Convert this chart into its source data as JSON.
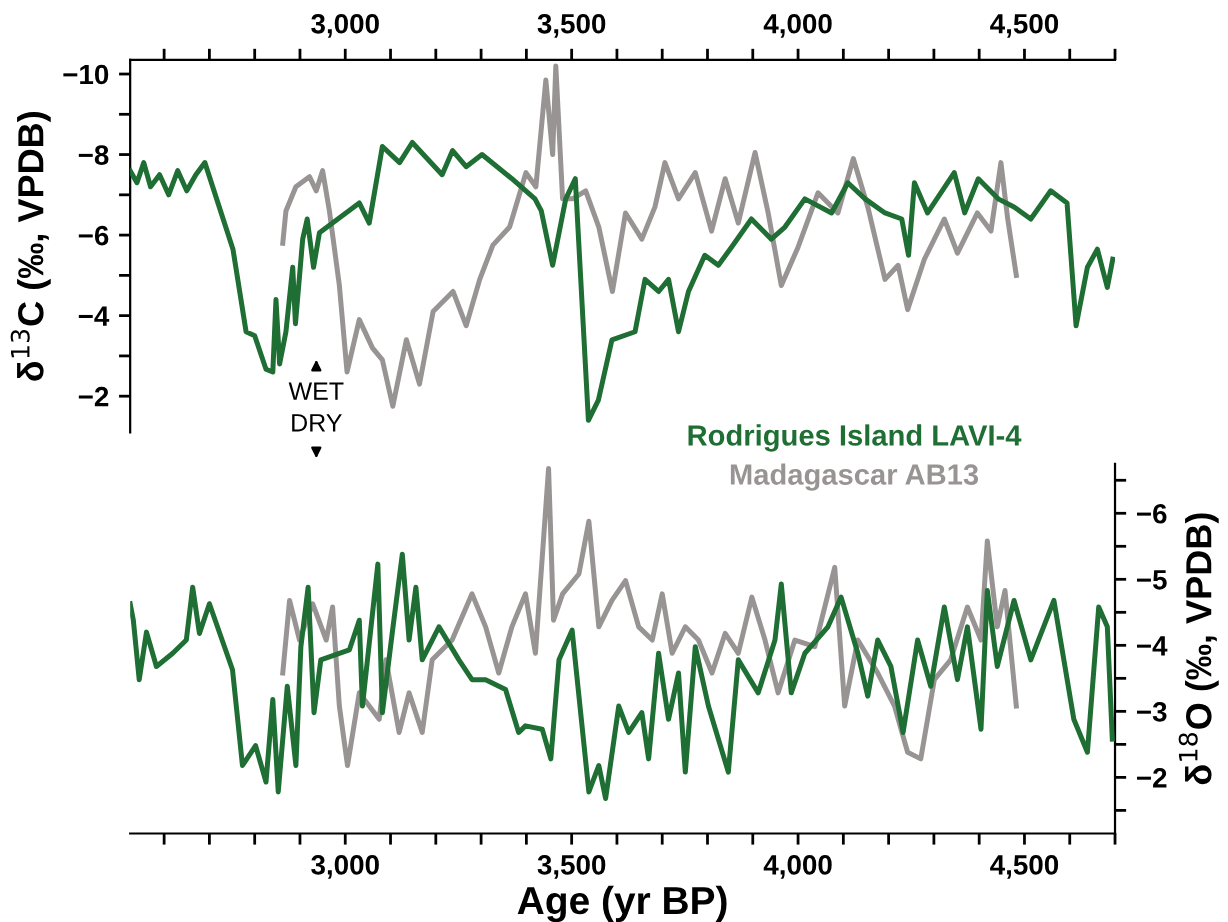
{
  "chart_data": [
    {
      "type": "line",
      "ylabel": "δ$^{13}$C (‰, VPDB)",
      "tick_labels": "y",
      "xlim": [
        2525,
        4700
      ],
      "x2lim": [
        2525,
        4700
      ],
      "x2ticks": [
        {
          "value": 2600,
          "label": null
        },
        {
          "value": 2700,
          "label": null
        },
        {
          "value": 2800,
          "label": null
        },
        {
          "value": 2900,
          "label": null
        },
        {
          "value": 3000,
          "label": "3,000"
        },
        {
          "value": 3100,
          "label": null
        },
        {
          "value": 3200,
          "label": null
        },
        {
          "value": 3300,
          "label": null
        },
        {
          "value": 3400,
          "label": null
        },
        {
          "value": 3500,
          "label": "3,500"
        },
        {
          "value": 3600,
          "label": null
        },
        {
          "value": 3700,
          "label": null
        },
        {
          "value": 3800,
          "label": null
        },
        {
          "value": 3900,
          "label": null
        },
        {
          "value": 4000,
          "label": "4,000"
        },
        {
          "value": 4100,
          "label": null
        },
        {
          "value": 4200,
          "label": null
        },
        {
          "value": 4300,
          "label": null
        },
        {
          "value": 4400,
          "label": null
        },
        {
          "value": 4500,
          "label": "4,500"
        },
        {
          "value": 4600,
          "label": null
        },
        {
          "value": 4700,
          "label": null
        }
      ],
      "ylim": [
        -1.1,
        -10.35
      ],
      "yticks": [
        {
          "value": -10,
          "label": "−10"
        },
        {
          "value": -9,
          "label": null
        },
        {
          "value": -8,
          "label": "−8"
        },
        {
          "value": -7,
          "label": null
        },
        {
          "value": -6,
          "label": "−6"
        },
        {
          "value": -5,
          "label": null
        },
        {
          "value": -4,
          "label": "−4"
        },
        {
          "value": -3,
          "label": null
        },
        {
          "value": -2,
          "label": "−2"
        }
      ],
      "line_style": "solid",
      "annotations": [
        "WET"
      ],
      "series": [
        {
          "name": "Rodrigues Island LAVI-4",
          "color": "#1f6e34",
          "x": [
            2525,
            2540,
            2555,
            2570,
            2590,
            2610,
            2630,
            2650,
            2670,
            2690,
            2752,
            2781,
            2800,
            2825,
            2840,
            2847,
            2855,
            2869,
            2884,
            2890,
            2906,
            2916,
            2930,
            2943,
            3031,
            3053,
            3082,
            3120,
            3148,
            3214,
            3237,
            3267,
            3302,
            3368,
            3419,
            3433,
            3458,
            3487,
            3508,
            3537,
            3559,
            3589,
            3640,
            3662,
            3692,
            3714,
            3736,
            3758,
            3794,
            3824,
            3853,
            3897,
            3941,
            3971,
            4015,
            4074,
            4110,
            4148,
            4192,
            4229,
            4244,
            4257,
            4286,
            4345,
            4368,
            4398,
            4442,
            4477,
            4514,
            4558,
            4594,
            4614,
            4639,
            4661,
            4683,
            4695
          ],
          "values": [
            -7.6,
            -7.3,
            -7.8,
            -7.2,
            -7.5,
            -7.0,
            -7.6,
            -7.1,
            -7.5,
            -7.8,
            -5.65,
            -3.6,
            -3.5,
            -2.67,
            -2.6,
            -4.4,
            -2.8,
            -3.6,
            -5.2,
            -3.8,
            -5.9,
            -6.4,
            -5.2,
            -6.06,
            -6.8,
            -6.3,
            -8.2,
            -7.8,
            -8.3,
            -7.5,
            -8.1,
            -7.7,
            -8.0,
            -7.4,
            -6.9,
            -6.6,
            -5.25,
            -6.9,
            -7.4,
            -1.4,
            -1.9,
            -3.4,
            -3.6,
            -4.9,
            -4.6,
            -4.9,
            -3.6,
            -4.6,
            -5.5,
            -5.25,
            -5.7,
            -6.4,
            -5.9,
            -6.2,
            -6.9,
            -6.55,
            -7.3,
            -6.9,
            -6.55,
            -6.4,
            -5.5,
            -7.3,
            -6.55,
            -7.55,
            -6.55,
            -7.4,
            -6.9,
            -6.7,
            -6.4,
            -7.1,
            -6.8,
            -3.75,
            -5.2,
            -5.65,
            -4.7,
            -5.4
          ]
        },
        {
          "name": "Madagascar AB13",
          "color": "#999494",
          "x": [
            2862,
            2869,
            2891,
            2921,
            2936,
            2950,
            2965,
            2987,
            3004,
            3031,
            3060,
            3082,
            3105,
            3135,
            3164,
            3194,
            3238,
            3267,
            3297,
            3326,
            3363,
            3399,
            3421,
            3443,
            3458,
            3465,
            3480,
            3502,
            3531,
            3560,
            3590,
            3619,
            3655,
            3684,
            3706,
            3736,
            3773,
            3809,
            3839,
            3868,
            3905,
            3934,
            3963,
            4000,
            4044,
            4088,
            4122,
            4154,
            4192,
            4221,
            4242,
            4279,
            4323,
            4352,
            4396,
            4426,
            4448,
            4463,
            4482
          ],
          "values": [
            -5.8,
            -6.6,
            -7.2,
            -7.45,
            -7.1,
            -7.6,
            -6.6,
            -4.75,
            -2.6,
            -3.9,
            -3.2,
            -2.9,
            -1.75,
            -3.4,
            -2.3,
            -4.1,
            -4.6,
            -3.75,
            -4.9,
            -5.75,
            -6.2,
            -7.55,
            -7.2,
            -9.85,
            -8.0,
            -10.2,
            -6.9,
            -6.9,
            -7.1,
            -6.2,
            -4.6,
            -6.55,
            -5.9,
            -6.7,
            -7.8,
            -6.9,
            -7.55,
            -6.1,
            -7.4,
            -6.3,
            -8.05,
            -6.55,
            -4.75,
            -5.7,
            -7.05,
            -6.55,
            -7.9,
            -6.7,
            -4.9,
            -5.25,
            -4.15,
            -5.4,
            -6.4,
            -5.55,
            -6.55,
            -6.1,
            -7.8,
            -6.4,
            -5.0
          ]
        }
      ]
    },
    {
      "type": "line",
      "xlabel": "Age (yr BP)",
      "y2label": "δ$^{18}$O (‰, VPDB)",
      "xlim": [
        2525,
        4700
      ],
      "xticks": [
        {
          "value": 2600,
          "label": null
        },
        {
          "value": 2700,
          "label": null
        },
        {
          "value": 2800,
          "label": null
        },
        {
          "value": 2900,
          "label": null
        },
        {
          "value": 3000,
          "label": "3,000"
        },
        {
          "value": 3100,
          "label": null
        },
        {
          "value": 3200,
          "label": null
        },
        {
          "value": 3300,
          "label": null
        },
        {
          "value": 3400,
          "label": null
        },
        {
          "value": 3500,
          "label": "3,500"
        },
        {
          "value": 3600,
          "label": null
        },
        {
          "value": 3700,
          "label": null
        },
        {
          "value": 3800,
          "label": null
        },
        {
          "value": 3900,
          "label": null
        },
        {
          "value": 4000,
          "label": "4,000"
        },
        {
          "value": 4100,
          "label": null
        },
        {
          "value": 4200,
          "label": null
        },
        {
          "value": 4300,
          "label": null
        },
        {
          "value": 4400,
          "label": null
        },
        {
          "value": 4500,
          "label": "4,500"
        },
        {
          "value": 4600,
          "label": null
        },
        {
          "value": 4700,
          "label": null
        }
      ],
      "y2lim": [
        -1.15,
        -6.75
      ],
      "y2ticks": [
        {
          "value": -6.5,
          "label": null
        },
        {
          "value": -6,
          "label": "−6"
        },
        {
          "value": -5.5,
          "label": null
        },
        {
          "value": -5,
          "label": "−5"
        },
        {
          "value": -4.5,
          "label": null
        },
        {
          "value": -4,
          "label": "−4"
        },
        {
          "value": -3.5,
          "label": null
        },
        {
          "value": -3,
          "label": "−3"
        },
        {
          "value": -2.5,
          "label": null
        },
        {
          "value": -2,
          "label": "−2"
        },
        {
          "value": -1.5,
          "label": null
        }
      ],
      "line_style": "solid",
      "annotations": [
        "DRY"
      ],
      "series": [
        {
          "color": "#1f6e34",
          "axis": "y2",
          "x": [
            2525,
            2532,
            2545,
            2561,
            2583,
            2619,
            2649,
            2663,
            2678,
            2700,
            2751,
            2773,
            2802,
            2825,
            2840,
            2852,
            2872,
            2891,
            2902,
            2918,
            2931,
            2946,
            3009,
            3031,
            3038,
            3072,
            3082,
            3104,
            3126,
            3141,
            3156,
            3170,
            3207,
            3251,
            3280,
            3310,
            3354,
            3383,
            3398,
            3435,
            3454,
            3472,
            3501,
            3538,
            3560,
            3575,
            3604,
            3626,
            3655,
            3670,
            3692,
            3714,
            3736,
            3751,
            3773,
            3802,
            3846,
            3868,
            3912,
            3949,
            3963,
            3985,
            4015,
            4066,
            4095,
            4132,
            4154,
            4176,
            4205,
            4232,
            4264,
            4293,
            4323,
            4352,
            4374,
            4404,
            4418,
            4440,
            4477,
            4514,
            4565,
            4587,
            4609,
            4639,
            4664,
            4683,
            4694
          ],
          "values": [
            -4.63,
            -4.38,
            -3.48,
            -4.2,
            -3.68,
            -3.88,
            -4.08,
            -4.88,
            -4.18,
            -4.63,
            -3.63,
            -2.18,
            -2.48,
            -1.93,
            -3.18,
            -1.78,
            -3.38,
            -2.18,
            -3.98,
            -4.88,
            -2.98,
            -3.78,
            -3.93,
            -4.38,
            -3.08,
            -5.23,
            -2.98,
            -4.2,
            -5.38,
            -4.08,
            -4.88,
            -3.78,
            -4.28,
            -3.78,
            -3.48,
            -3.48,
            -3.33,
            -2.68,
            -2.78,
            -2.73,
            -2.28,
            -3.78,
            -4.23,
            -1.78,
            -2.18,
            -1.68,
            -3.08,
            -2.68,
            -2.98,
            -2.28,
            -3.88,
            -2.88,
            -3.58,
            -2.08,
            -3.98,
            -3.08,
            -2.08,
            -3.78,
            -3.28,
            -4.08,
            -4.93,
            -3.28,
            -3.88,
            -4.28,
            -4.73,
            -3.88,
            -3.23,
            -4.08,
            -3.68,
            -2.68,
            -4.08,
            -3.38,
            -4.58,
            -3.48,
            -4.28,
            -2.73,
            -4.83,
            -3.68,
            -4.68,
            -3.78,
            -4.68,
            -3.78,
            -2.88,
            -2.38,
            -4.58,
            -4.28,
            -2.58
          ]
        },
        {
          "color": "#999494",
          "axis": "y2",
          "x": [
            2862,
            2877,
            2899,
            2928,
            2958,
            2972,
            2987,
            3005,
            3031,
            3075,
            3090,
            3119,
            3141,
            3170,
            3192,
            3236,
            3280,
            3310,
            3339,
            3368,
            3398,
            3420,
            3449,
            3460,
            3480,
            3516,
            3538,
            3560,
            3589,
            3619,
            3648,
            3678,
            3700,
            3722,
            3751,
            3780,
            3810,
            3839,
            3868,
            3898,
            3927,
            3956,
            3993,
            4037,
            4081,
            4103,
            4132,
            4176,
            4213,
            4242,
            4271,
            4301,
            4337,
            4374,
            4404,
            4418,
            4440,
            4457,
            4482
          ],
          "values": [
            -3.58,
            -4.68,
            -4.08,
            -4.63,
            -4.08,
            -4.58,
            -3.08,
            -2.18,
            -3.28,
            -2.88,
            -3.78,
            -2.68,
            -3.28,
            -2.68,
            -3.78,
            -4.08,
            -4.78,
            -4.28,
            -3.58,
            -4.28,
            -4.78,
            -3.88,
            -6.68,
            -4.38,
            -4.78,
            -5.08,
            -5.88,
            -4.28,
            -4.68,
            -4.98,
            -4.28,
            -4.08,
            -4.78,
            -3.88,
            -4.28,
            -4.08,
            -3.58,
            -4.18,
            -3.88,
            -4.73,
            -4.08,
            -3.28,
            -4.08,
            -3.98,
            -5.18,
            -3.08,
            -4.08,
            -3.58,
            -3.08,
            -2.38,
            -2.28,
            -3.48,
            -3.78,
            -4.58,
            -4.08,
            -5.58,
            -4.28,
            -4.83,
            -3.08
          ]
        }
      ]
    }
  ]
}
